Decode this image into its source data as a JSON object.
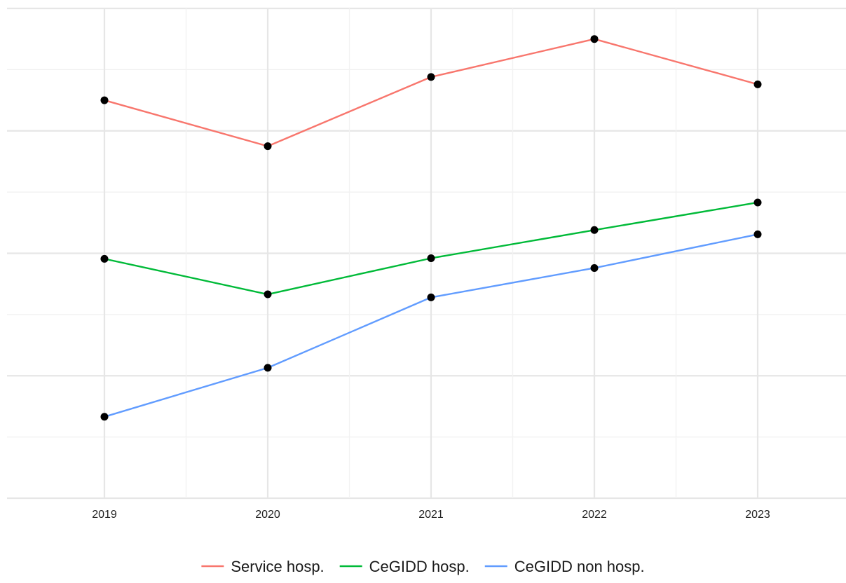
{
  "chart_data": {
    "type": "line",
    "title": "",
    "xlabel": "",
    "ylabel": "",
    "x": [
      "2019",
      "2020",
      "2021",
      "2022",
      "2023"
    ],
    "ylim": [
      0,
      8
    ],
    "y_ticks_labeled": false,
    "grid": true,
    "legend_position": "bottom",
    "series": [
      {
        "name": "Service hosp.",
        "color": "#F8766D",
        "values": [
          6.5,
          5.75,
          6.88,
          7.5,
          6.76
        ]
      },
      {
        "name": "CeGIDD hosp.",
        "color": "#00BA38",
        "values": [
          3.91,
          3.33,
          3.92,
          4.38,
          4.83
        ]
      },
      {
        "name": "CeGIDD non hosp.",
        "color": "#619CFF",
        "values": [
          1.33,
          2.13,
          3.28,
          3.76,
          4.31
        ]
      }
    ],
    "point_color": "#000000"
  }
}
